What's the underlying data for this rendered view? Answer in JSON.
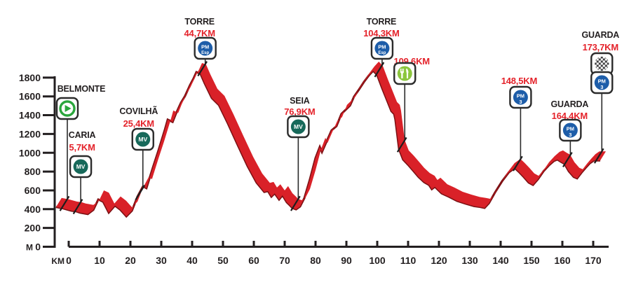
{
  "colors": {
    "profile_red": "#d92128",
    "profile_edge_dark": "#7a1013",
    "label_red": "#e4222a",
    "text_dark": "#231f20",
    "axis": "#231f20",
    "sign_border": "#2b2b2b",
    "sign_fill": "#ffffff",
    "mv_green": "#17695a",
    "start_green": "#2aa63c",
    "pm_blue": "#1d5da9",
    "feed_green": "#8cc63e",
    "finish_dark": "#414042"
  },
  "y_axis": {
    "unit": "M",
    "ticks": [
      0,
      200,
      400,
      600,
      800,
      1000,
      1200,
      1400,
      1600,
      1800
    ]
  },
  "x_axis": {
    "unit": "KM",
    "ticks": [
      0,
      10,
      20,
      30,
      40,
      50,
      60,
      70,
      80,
      90,
      100,
      110,
      120,
      130,
      140,
      150,
      160,
      170
    ]
  },
  "icon_labels": {
    "mv": "MV",
    "pm": "PM",
    "esp": "Esp",
    "cat3": "3"
  },
  "markers": [
    {
      "id": "belmonte-start",
      "name": "BELMONTE",
      "km_label": "",
      "km": 0,
      "icons": [
        "start"
      ]
    },
    {
      "id": "caria",
      "name": "CARIA",
      "km_label": "5,7KM",
      "km": 5.7,
      "icons": [
        "mv"
      ]
    },
    {
      "id": "covilha",
      "name": "COVILHÃ",
      "km_label": "25,4KM",
      "km": 25.4,
      "icons": [
        "mv"
      ]
    },
    {
      "id": "torre-1",
      "name": "TORRE",
      "km_label": "44,7KM",
      "km": 44.7,
      "icons": [
        "pm_esp"
      ]
    },
    {
      "id": "seia",
      "name": "SEIA",
      "km_label": "76,9KM",
      "km": 76.9,
      "icons": [
        "mv"
      ]
    },
    {
      "id": "torre-2",
      "name": "TORRE",
      "km_label": "104,3KM",
      "km": 104.3,
      "icons": [
        "pm_esp"
      ]
    },
    {
      "id": "feed-zone",
      "name": "",
      "km_label": "109,6KM",
      "km": 109.6,
      "icons": [
        "feed"
      ]
    },
    {
      "id": "climb-cat3",
      "name": "",
      "km_label": "148,5KM",
      "km": 148.5,
      "icons": [
        "pm3"
      ]
    },
    {
      "id": "guarda-cat3",
      "name": "GUARDA",
      "km_label": "164,4KM",
      "km": 164.4,
      "icons": [
        "pm3"
      ]
    },
    {
      "id": "guarda-finish",
      "name": "GUARDA",
      "km_label": "173,7KM",
      "km": 173.7,
      "icons": [
        "finish",
        "pm3"
      ]
    }
  ],
  "chart_data": {
    "type": "area",
    "title": "",
    "xlabel": "KM",
    "ylabel": "M",
    "xlim": [
      0,
      174
    ],
    "ylim": [
      0,
      1800
    ],
    "x_tick_step": 10,
    "y_tick_step": 200,
    "grid": false,
    "profile_km_m": [
      [
        -2.3,
        520
      ],
      [
        0,
        505
      ],
      [
        2.7,
        480
      ],
      [
        4.1,
        475
      ],
      [
        5.5,
        460
      ],
      [
        8,
        445
      ],
      [
        9.8,
        490
      ],
      [
        11.4,
        600
      ],
      [
        13,
        575
      ],
      [
        14.8,
        460
      ],
      [
        16.8,
        535
      ],
      [
        18.6,
        490
      ],
      [
        20.5,
        420
      ],
      [
        22.3,
        480
      ],
      [
        24.1,
        630
      ],
      [
        25.9,
        740
      ],
      [
        27,
        720
      ],
      [
        29.1,
        940
      ],
      [
        30.9,
        1120
      ],
      [
        33,
        1345
      ],
      [
        33.9,
        1450
      ],
      [
        35.5,
        1425
      ],
      [
        36.6,
        1515
      ],
      [
        38.2,
        1630
      ],
      [
        39.5,
        1700
      ],
      [
        41.1,
        1815
      ],
      [
        42.3,
        1890
      ],
      [
        43.2,
        1955
      ],
      [
        44.5,
        1940
      ],
      [
        45.9,
        1835
      ],
      [
        48.2,
        1680
      ],
      [
        50.5,
        1605
      ],
      [
        53.4,
        1410
      ],
      [
        56.6,
        1180
      ],
      [
        59.8,
        955
      ],
      [
        62.7,
        780
      ],
      [
        65.2,
        680
      ],
      [
        66.4,
        690
      ],
      [
        67.5,
        630
      ],
      [
        68.6,
        665
      ],
      [
        70,
        600
      ],
      [
        71.1,
        645
      ],
      [
        72.5,
        570
      ],
      [
        73.6,
        535
      ],
      [
        74.3,
        510
      ],
      [
        75.5,
        495
      ],
      [
        76.8,
        525
      ],
      [
        78.2,
        615
      ],
      [
        80,
        815
      ],
      [
        81.8,
        1040
      ],
      [
        83.2,
        1160
      ],
      [
        83.9,
        1105
      ],
      [
        85.5,
        1225
      ],
      [
        87,
        1335
      ],
      [
        88.6,
        1380
      ],
      [
        90.2,
        1510
      ],
      [
        93,
        1600
      ],
      [
        94.3,
        1695
      ],
      [
        95.9,
        1770
      ],
      [
        97.5,
        1850
      ],
      [
        99.1,
        1920
      ],
      [
        100.5,
        1970
      ],
      [
        101.8,
        1925
      ],
      [
        103.4,
        1785
      ],
      [
        105,
        1655
      ],
      [
        106.4,
        1540
      ],
      [
        107.3,
        1510
      ],
      [
        107.7,
        1450
      ],
      [
        108.9,
        1135
      ],
      [
        110.2,
        1025
      ],
      [
        111.8,
        970
      ],
      [
        113.4,
        910
      ],
      [
        115.2,
        840
      ],
      [
        117,
        785
      ],
      [
        118.6,
        755
      ],
      [
        119.5,
        710
      ],
      [
        120.5,
        735
      ],
      [
        122.7,
        665
      ],
      [
        125,
        630
      ],
      [
        127.7,
        585
      ],
      [
        130.5,
        555
      ],
      [
        133.2,
        530
      ],
      [
        135.2,
        520
      ],
      [
        136.6,
        510
      ],
      [
        138,
        560
      ],
      [
        140,
        675
      ],
      [
        142.3,
        795
      ],
      [
        144.5,
        890
      ],
      [
        146.4,
        935
      ],
      [
        147.7,
        895
      ],
      [
        149.3,
        840
      ],
      [
        150.9,
        780
      ],
      [
        152.3,
        755
      ],
      [
        153.9,
        815
      ],
      [
        155.7,
        900
      ],
      [
        157.5,
        965
      ],
      [
        159.1,
        1010
      ],
      [
        160.2,
        1025
      ],
      [
        161.4,
        1000
      ],
      [
        162.5,
        980
      ],
      [
        163.9,
        900
      ],
      [
        165.5,
        840
      ],
      [
        166.6,
        825
      ],
      [
        168,
        885
      ],
      [
        169.3,
        935
      ],
      [
        170.7,
        985
      ],
      [
        172,
        1015
      ],
      [
        174.1,
        1015
      ]
    ]
  }
}
